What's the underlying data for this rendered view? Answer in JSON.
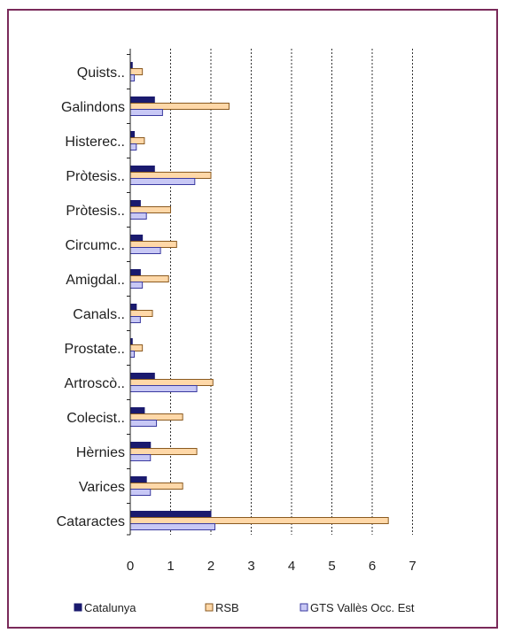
{
  "chart_data": {
    "type": "bar",
    "orientation": "horizontal",
    "categories": [
      "Quists..",
      "Galindons",
      "Histerec..",
      "Pròtesis..",
      "Pròtesis..",
      "Circumc..",
      "Amigdal..",
      "Canals..",
      "Prostate..",
      "Artroscò..",
      "Colecist..",
      "Hèrnies",
      "Varices",
      "Cataractes"
    ],
    "series": [
      {
        "name": "Catalunya",
        "color": "#1a1a6e",
        "border": "#1a1a6e",
        "values": [
          0.05,
          0.6,
          0.1,
          0.6,
          0.25,
          0.3,
          0.25,
          0.15,
          0.05,
          0.6,
          0.35,
          0.5,
          0.4,
          2.0
        ]
      },
      {
        "name": "RSB",
        "color": "#ffd8a8",
        "border": "#8a5a20",
        "values": [
          0.3,
          2.45,
          0.35,
          2.0,
          1.0,
          1.15,
          0.95,
          0.55,
          0.3,
          2.05,
          1.3,
          1.65,
          1.3,
          6.4
        ]
      },
      {
        "name": "GTS Vallès Occ. Est",
        "color": "#c8c8f5",
        "border": "#3a3aa0",
        "values": [
          0.1,
          0.8,
          0.15,
          1.6,
          0.4,
          0.75,
          0.3,
          0.25,
          0.1,
          1.65,
          0.65,
          0.5,
          0.5,
          2.1
        ]
      }
    ],
    "xlim": [
      0,
      7
    ],
    "x_ticks": [
      "0",
      "1",
      "2",
      "3",
      "4",
      "5",
      "6",
      "7"
    ],
    "grid": "vertical dashed",
    "legend_position": "bottom",
    "title": "",
    "xlabel": "",
    "ylabel": ""
  }
}
